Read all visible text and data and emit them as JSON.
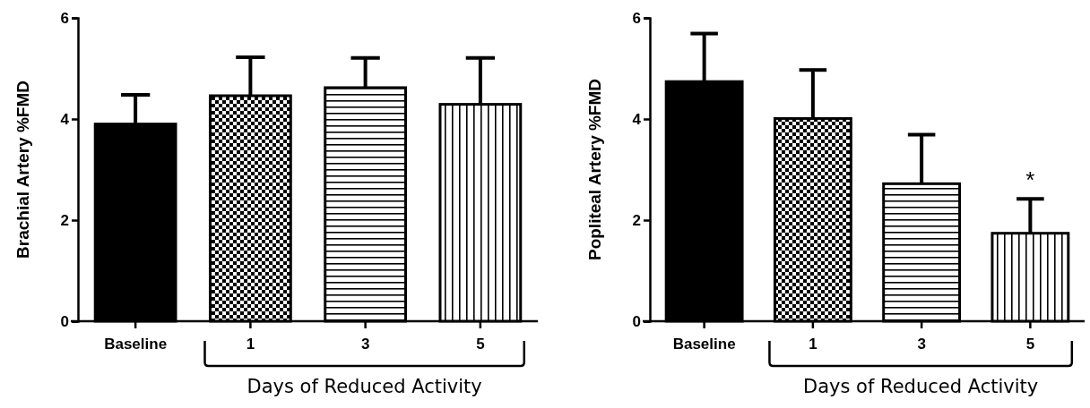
{
  "chart_data": [
    {
      "type": "bar",
      "ylabel": "Brachial Artery %FMD",
      "xlabel": "Days of Reduced Activity",
      "categories": [
        "Baseline",
        "1",
        "3",
        "5"
      ],
      "values": [
        3.9,
        4.46,
        4.62,
        4.29
      ],
      "colors": [
        "#000000",
        "#000000",
        "#000000",
        "#000000"
      ],
      "errors": [
        [
          3.9,
          4.48
        ],
        [
          4.46,
          5.22
        ],
        [
          4.62,
          5.21
        ],
        [
          4.29,
          5.21
        ]
      ],
      "ylim": [
        0,
        6
      ],
      "yticks": [
        0,
        2,
        4,
        6
      ],
      "grid": false
    },
    {
      "type": "bar",
      "ylabel": "Popliteal Artery %FMD",
      "xlabel": "Days of Reduced Activity",
      "categories": [
        "Baseline",
        "1",
        "3",
        "5"
      ],
      "values": [
        4.74,
        4.01,
        2.72,
        1.74
      ],
      "colors": [
        "#000000",
        "#000000",
        "#000000",
        "#000000"
      ],
      "errors": [
        [
          4.74,
          5.69
        ],
        [
          4.01,
          4.97
        ],
        [
          2.72,
          3.69
        ],
        [
          1.74,
          2.42
        ]
      ],
      "ylim": [
        0,
        6
      ],
      "yticks": [
        0,
        2,
        4,
        6
      ],
      "grid": false,
      "annotations": [
        {
          "text": "*",
          "x": "5",
          "y": 2.42
        }
      ]
    }
  ]
}
